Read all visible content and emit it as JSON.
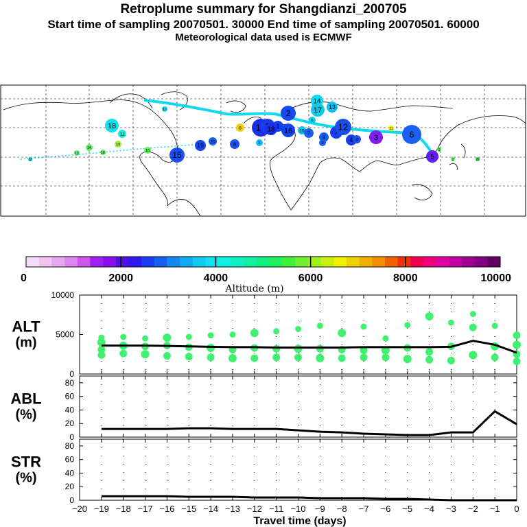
{
  "header": {
    "title": "Retroplume summary for Shangdianzi_200705",
    "sampling": "Start time of sampling 20070501. 30000     End time of sampling 20070501. 60000",
    "met": "Meteorological data used is ECMWF"
  },
  "colorbar": {
    "label": "Altitude (m)",
    "ticks": [
      "0",
      "2000",
      "4000",
      "6000",
      "8000",
      "10000"
    ],
    "colors": [
      "#f7dcf7",
      "#f0c4f0",
      "#e8a8f0",
      "#e088f0",
      "#cc55ee",
      "#a020f0",
      "#8a10f0",
      "#5010e0",
      "#3018ee",
      "#1a3cf0",
      "#1660f0",
      "#1488f0",
      "#10a8f0",
      "#10c8f0",
      "#10e0f0",
      "#10f0e0",
      "#10f0c0",
      "#10f0a0",
      "#10f080",
      "#20f060",
      "#40f040",
      "#70f030",
      "#a0f020",
      "#c8f010",
      "#f0f000",
      "#f0d000",
      "#f0b000",
      "#f09000",
      "#f06000",
      "#f03000",
      "#f00050",
      "#f00080",
      "#e000a0",
      "#c000a0",
      "#a00090",
      "#800080",
      "#600060"
    ]
  },
  "chart_data": [
    {
      "type": "line",
      "panel": "ALT",
      "ylabel_main": "ALT",
      "ylabel_unit": "(m)",
      "ylim": [
        0,
        10000
      ],
      "yticks": [
        "0",
        "5000",
        "10000"
      ],
      "x": [
        -19,
        -18,
        -17,
        -16,
        -15,
        -14,
        -13,
        -12,
        -11,
        -10,
        -9,
        -8,
        -7,
        -6,
        -5,
        -4,
        -3,
        -2,
        -1,
        0
      ],
      "median": [
        3600,
        3600,
        3600,
        3550,
        3500,
        3450,
        3400,
        3400,
        3350,
        3350,
        3350,
        3350,
        3400,
        3400,
        3400,
        3400,
        3450,
        4200,
        3700,
        2700
      ],
      "scatter_points": [
        [
          -19,
          4000
        ],
        [
          -19,
          3100
        ],
        [
          -19,
          2400
        ],
        [
          -19,
          4600
        ],
        [
          -18,
          3600
        ],
        [
          -18,
          2600
        ],
        [
          -18,
          4700
        ],
        [
          -17,
          3500
        ],
        [
          -17,
          2500
        ],
        [
          -17,
          4500
        ],
        [
          -16,
          3600
        ],
        [
          -16,
          2300
        ],
        [
          -16,
          4600
        ],
        [
          -15,
          3400
        ],
        [
          -15,
          2200
        ],
        [
          -15,
          4700
        ],
        [
          -14,
          3300
        ],
        [
          -14,
          2100
        ],
        [
          -14,
          4900
        ],
        [
          -13,
          3100
        ],
        [
          -13,
          2000
        ],
        [
          -13,
          5000
        ],
        [
          -12,
          3300
        ],
        [
          -12,
          2000
        ],
        [
          -12,
          5200
        ],
        [
          -11,
          3200
        ],
        [
          -11,
          2100
        ],
        [
          -11,
          5400
        ],
        [
          -10,
          3200
        ],
        [
          -10,
          2100
        ],
        [
          -10,
          5700
        ],
        [
          -9,
          3200
        ],
        [
          -9,
          2000
        ],
        [
          -9,
          6100
        ],
        [
          -8,
          3100
        ],
        [
          -8,
          2000
        ],
        [
          -8,
          5200
        ],
        [
          -7,
          3000
        ],
        [
          -7,
          2100
        ],
        [
          -7,
          6000
        ],
        [
          -6,
          3000
        ],
        [
          -6,
          2100
        ],
        [
          -6,
          4500
        ],
        [
          -5,
          3300
        ],
        [
          -5,
          1900
        ],
        [
          -5,
          6200
        ],
        [
          -4,
          2800
        ],
        [
          -4,
          1800
        ],
        [
          -4,
          7300
        ],
        [
          -3,
          3500
        ],
        [
          -3,
          1700
        ],
        [
          -3,
          6500
        ],
        [
          -2,
          2400
        ],
        [
          -2,
          5900
        ],
        [
          -2,
          7600
        ],
        [
          -1,
          2100
        ],
        [
          -1,
          3500
        ],
        [
          -1,
          6100
        ],
        [
          0,
          2500
        ],
        [
          0,
          1600
        ],
        [
          0,
          3700
        ],
        [
          0,
          4900
        ]
      ]
    },
    {
      "type": "line",
      "panel": "ABL",
      "ylabel_main": "ABL",
      "ylabel_unit": "(%)",
      "ylim": [
        0,
        90
      ],
      "yticks": [
        "0",
        "20",
        "40",
        "60",
        "80"
      ],
      "x": [
        -19,
        -18,
        -17,
        -16,
        -15,
        -14,
        -13,
        -12,
        -11,
        -10,
        -9,
        -8,
        -7,
        -6,
        -5,
        -4,
        -3,
        -2,
        -1,
        0
      ],
      "values": [
        12,
        12,
        12,
        12,
        13,
        13,
        12,
        12,
        12,
        10,
        8,
        7,
        5,
        4,
        3,
        3,
        7,
        7,
        38,
        19
      ]
    },
    {
      "type": "line",
      "panel": "STR",
      "ylabel_main": "STR",
      "ylabel_unit": "(%)",
      "ylim": [
        0,
        90
      ],
      "yticks": [
        "0",
        "20",
        "40",
        "60",
        "80"
      ],
      "x": [
        -19,
        -18,
        -17,
        -16,
        -15,
        -14,
        -13,
        -12,
        -11,
        -10,
        -9,
        -8,
        -7,
        -6,
        -5,
        -4,
        -3,
        -2,
        -1,
        0
      ],
      "values": [
        6,
        6,
        6,
        6,
        5,
        5,
        5,
        4,
        4,
        4,
        3,
        3,
        3,
        2,
        2,
        1,
        0,
        0,
        0,
        0
      ],
      "xlabel": "Travel time (days)",
      "xticks": [
        "−20",
        "−19",
        "−18",
        "−17",
        "−16",
        "−15",
        "−14",
        "−13",
        "−12",
        "−11",
        "−10",
        "−9",
        "−8",
        "−7",
        "−6",
        "−5",
        "−4",
        "−3",
        "−2",
        "−1",
        "0"
      ]
    }
  ],
  "map_plume": {
    "labels": [
      "14",
      "17",
      "13",
      "2",
      "9",
      "7",
      "3",
      "4",
      "16",
      "18",
      "11",
      "10",
      "19",
      "8",
      "6",
      "5",
      "12",
      "15",
      "20",
      "1",
      "12",
      "14",
      "16",
      "19",
      "17",
      "10",
      "8",
      "3",
      "15",
      "18",
      "13",
      "9",
      "11",
      "6",
      "2",
      "4",
      "20",
      "5",
      "1",
      "7"
    ]
  }
}
